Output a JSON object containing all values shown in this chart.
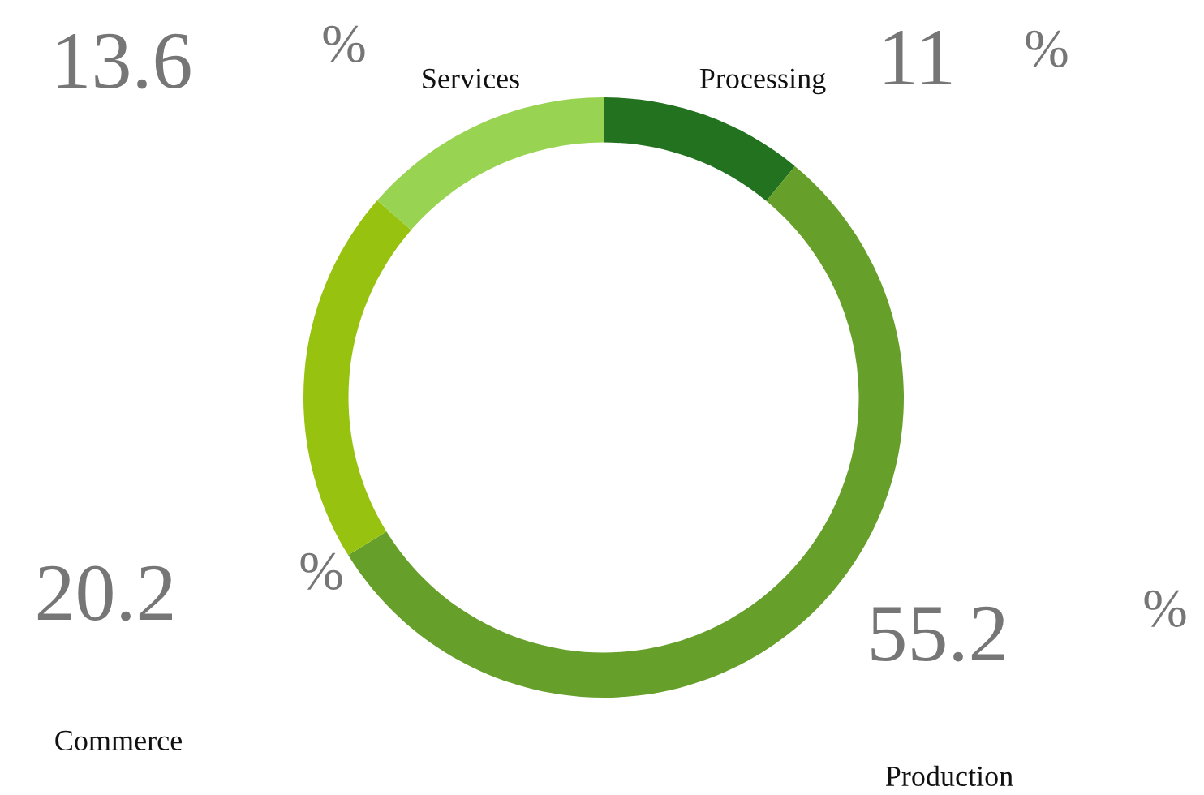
{
  "chart_data": {
    "type": "donut",
    "categories": [
      "Processing",
      "Production",
      "Commerce",
      "Services"
    ],
    "values": [
      11,
      55.2,
      20.2,
      13.6
    ],
    "colors": [
      "#22721f",
      "#66a02b",
      "#97c20f",
      "#98d452"
    ],
    "data_labels": true,
    "annotations": [
      "%",
      "%",
      "%",
      "%"
    ],
    "legend": false
  }
}
